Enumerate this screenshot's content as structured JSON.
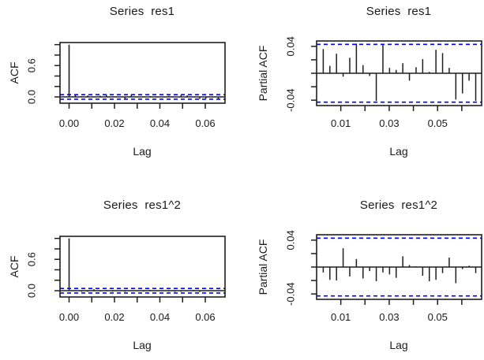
{
  "figure": {
    "background": "#ffffff",
    "colors": {
      "line": "#1f1f1f",
      "text": "#1a1a1a",
      "confidence": "#0000ff"
    }
  },
  "chart_data": [
    {
      "id": "acf-res1",
      "type": "bar",
      "plot_kind": "autocorrelation",
      "title": "Series  res1",
      "xlabel": "Lag",
      "ylabel": "ACF",
      "xlim": [
        -0.004,
        0.0687
      ],
      "ylim": [
        -0.12,
        1.04
      ],
      "xticks": [
        0,
        0.01,
        0.02,
        0.03,
        0.04,
        0.05,
        0.06
      ],
      "xtick_labels": [
        "0.00",
        "",
        "0.02",
        "",
        "0.04",
        "",
        "0.06"
      ],
      "yticks": [
        0,
        0.2,
        0.4,
        0.6,
        0.8,
        1.0
      ],
      "ytick_labels": [
        "0.0",
        "",
        "",
        "0.6",
        "",
        ""
      ],
      "confidence_band": 0.043,
      "lag_step": 0.00274,
      "lag0_value": 1.0,
      "values": [
        0.036,
        0.011,
        0.029,
        -0.005,
        0.023,
        0.044,
        0.012,
        -0.004,
        -0.041,
        0.042,
        0.008,
        0.005,
        0.015,
        -0.011,
        0.009,
        0.021,
        0.002,
        0.035,
        0.03,
        0.008,
        -0.039,
        -0.03,
        -0.011,
        -0.041
      ],
      "grid": false,
      "legend": null
    },
    {
      "id": "pacf-res1",
      "type": "bar",
      "plot_kind": "partial-autocorrelation",
      "title": "Series  res1",
      "xlabel": "Lag",
      "ylabel": "Partial ACF",
      "xlim": [
        0,
        0.0682
      ],
      "ylim": [
        -0.048,
        0.048
      ],
      "xticks": [
        0.01,
        0.02,
        0.03,
        0.04,
        0.05,
        0.06
      ],
      "xtick_labels": [
        "0.01",
        "",
        "0.03",
        "",
        "0.05",
        ""
      ],
      "yticks": [
        -0.04,
        -0.02,
        0,
        0.02,
        0.04
      ],
      "ytick_labels": [
        "-0.04",
        "",
        "",
        "",
        "0.04"
      ],
      "confidence_band": 0.043,
      "lag_step": 0.00274,
      "lag0_value": null,
      "values": [
        0.036,
        0.011,
        0.029,
        -0.005,
        0.023,
        0.044,
        0.012,
        -0.004,
        -0.041,
        0.042,
        0.008,
        0.005,
        0.015,
        -0.011,
        0.009,
        0.021,
        0.002,
        0.035,
        0.03,
        0.008,
        -0.039,
        -0.03,
        -0.011,
        -0.041
      ],
      "grid": false,
      "legend": null
    },
    {
      "id": "acf-res1sq",
      "type": "bar",
      "plot_kind": "autocorrelation",
      "title": "Series  res1^2",
      "xlabel": "Lag",
      "ylabel": "ACF",
      "xlim": [
        -0.004,
        0.0687
      ],
      "ylim": [
        -0.12,
        1.04
      ],
      "xticks": [
        0,
        0.01,
        0.02,
        0.03,
        0.04,
        0.05,
        0.06
      ],
      "xtick_labels": [
        "0.00",
        "",
        "0.02",
        "",
        "0.04",
        "",
        "0.06"
      ],
      "yticks": [
        0,
        0.2,
        0.4,
        0.6,
        0.8,
        1.0
      ],
      "ytick_labels": [
        "0.0",
        "",
        "",
        "0.6",
        "",
        ""
      ],
      "confidence_band": 0.043,
      "lag_step": 0.00274,
      "lag0_value": 1.0,
      "values": [
        -0.008,
        -0.019,
        -0.02,
        0.028,
        -0.014,
        0.012,
        -0.017,
        -0.006,
        -0.021,
        -0.008,
        -0.011,
        -0.016,
        0.016,
        0.003,
        0.001,
        -0.013,
        -0.021,
        -0.019,
        -0.009,
        0.014,
        -0.024,
        -0.003,
        0.002,
        -0.009
      ],
      "grid": false,
      "legend": null
    },
    {
      "id": "pacf-res1sq",
      "type": "bar",
      "plot_kind": "partial-autocorrelation",
      "title": "Series  res1^2",
      "xlabel": "Lag",
      "ylabel": "Partial ACF",
      "xlim": [
        0,
        0.0682
      ],
      "ylim": [
        -0.048,
        0.048
      ],
      "xticks": [
        0.01,
        0.02,
        0.03,
        0.04,
        0.05,
        0.06
      ],
      "xtick_labels": [
        "0.01",
        "",
        "0.03",
        "",
        "0.05",
        ""
      ],
      "yticks": [
        -0.04,
        -0.02,
        0,
        0.02,
        0.04
      ],
      "ytick_labels": [
        "-0.04",
        "",
        "",
        "",
        "0.04"
      ],
      "confidence_band": 0.043,
      "lag_step": 0.00274,
      "lag0_value": null,
      "values": [
        -0.008,
        -0.019,
        -0.02,
        0.028,
        -0.014,
        0.012,
        -0.017,
        -0.006,
        -0.021,
        -0.008,
        -0.011,
        -0.016,
        0.016,
        0.003,
        0.001,
        -0.013,
        -0.021,
        -0.019,
        -0.009,
        0.014,
        -0.024,
        -0.003,
        0.002,
        -0.009
      ],
      "grid": false,
      "legend": null
    }
  ]
}
